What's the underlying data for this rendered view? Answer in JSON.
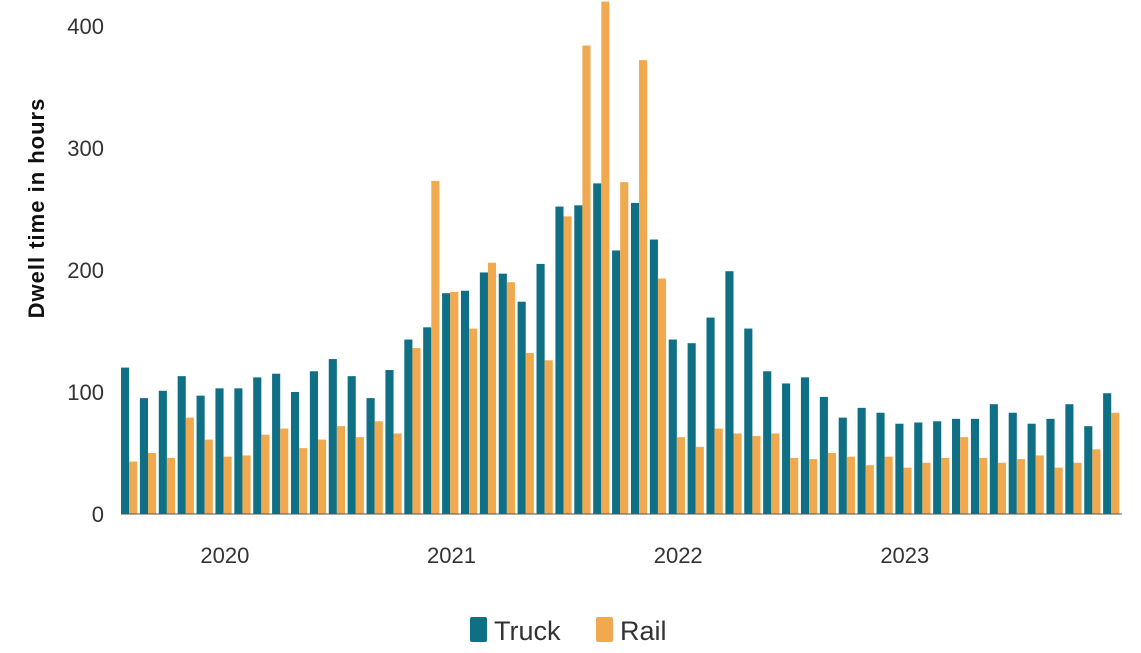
{
  "chart_data": {
    "type": "bar",
    "ylabel": "Dwell time in hours",
    "xlabel": "",
    "ylim": [
      0,
      400
    ],
    "yticks": [
      0,
      100,
      200,
      300,
      400
    ],
    "year_labels": [
      {
        "label": "2020",
        "start_index": 5
      },
      {
        "label": "2021",
        "start_index": 17
      },
      {
        "label": "2022",
        "start_index": 29
      },
      {
        "label": "2023",
        "start_index": 41
      }
    ],
    "grid": false,
    "legend_position": "bottom",
    "colors": {
      "truck": "#0f7085",
      "rail": "#f0a94f",
      "axis": "#555555"
    },
    "series": [
      {
        "name": "Truck",
        "values": [
          120,
          95,
          101,
          113,
          97,
          103,
          103,
          112,
          115,
          100,
          117,
          127,
          113,
          95,
          118,
          143,
          153,
          181,
          183,
          198,
          197,
          174,
          205,
          252,
          253,
          271,
          216,
          255,
          225,
          143,
          140,
          161,
          199,
          152,
          117,
          107,
          112,
          96,
          79,
          87,
          83,
          74,
          75,
          76,
          78,
          78,
          90,
          83,
          74,
          78,
          90,
          72,
          99
        ]
      },
      {
        "name": "Rail",
        "values": [
          43,
          50,
          46,
          79,
          61,
          47,
          48,
          65,
          70,
          54,
          61,
          72,
          63,
          76,
          66,
          136,
          273,
          182,
          152,
          206,
          190,
          132,
          126,
          244,
          384,
          420,
          272,
          372,
          193,
          63,
          55,
          70,
          66,
          64,
          66,
          46,
          45,
          50,
          47,
          40,
          47,
          38,
          42,
          46,
          63,
          46,
          42,
          45,
          48,
          38,
          42,
          53,
          83
        ]
      }
    ]
  }
}
